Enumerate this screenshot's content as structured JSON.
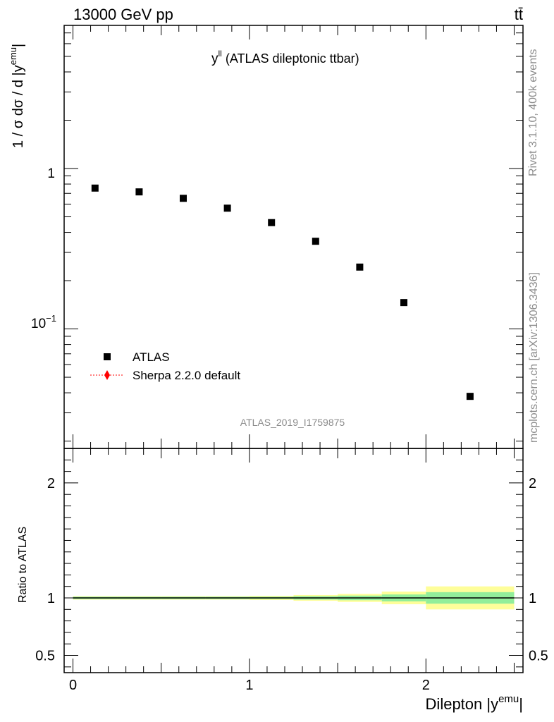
{
  "header": {
    "left": "13000 GeV pp",
    "right": "tt̄"
  },
  "side": {
    "rivet": "Rivet 3.1.10,  400k events",
    "mcplots": "mcplots.cern.ch [arXiv:1306.3436]"
  },
  "chart_data": [
    {
      "type": "scatter",
      "title_main": "y",
      "title_sup": "ll",
      "title_rest": " (ATLAS dileptonic ttbar)",
      "ylabel_main": "1 / σ  dσ / d |y",
      "ylabel_sup": "emu",
      "ylabel_end": "|",
      "yscale": "log",
      "ylim": [
        0.018,
        7.8
      ],
      "xlim": [
        -0.05,
        2.55
      ],
      "ytick_labels": {
        "one": "1",
        "tenth_base": "10",
        "tenth_exp": "−1"
      },
      "watermark": "ATLAS_2019_I1759875",
      "legend_position": "left",
      "series": [
        {
          "name": "ATLAS",
          "marker": "square",
          "color": "#000000",
          "x": [
            0.125,
            0.375,
            0.625,
            0.875,
            1.125,
            1.375,
            1.625,
            1.875,
            2.25
          ],
          "y": [
            0.755,
            0.715,
            0.652,
            0.566,
            0.46,
            0.352,
            0.243,
            0.146,
            0.038
          ]
        },
        {
          "name": "Sherpa 2.2.0 default",
          "marker": "diamond",
          "line": "dotted",
          "color": "#ff0000",
          "x": [],
          "y": []
        }
      ]
    },
    {
      "type": "line",
      "ylabel": "Ratio to ATLAS",
      "xlabel_main": "Dilepton |y",
      "xlabel_sup": "emu",
      "xlabel_end": "|",
      "ylim": [
        0.35,
        2.3
      ],
      "xlim": [
        -0.05,
        2.55
      ],
      "ytick_labels": [
        "0.5",
        "1",
        "2"
      ],
      "ytick_values": [
        0.5,
        1,
        2
      ],
      "xtick_labels": [
        "0",
        "1",
        "2"
      ],
      "xtick_values": [
        0,
        1,
        2
      ],
      "reference": 1,
      "bin_edges": [
        0,
        0.25,
        0.5,
        0.75,
        1.0,
        1.25,
        1.5,
        1.75,
        2.0,
        2.5
      ],
      "band_inner": [
        0.01,
        0.01,
        0.01,
        0.01,
        0.01,
        0.015,
        0.02,
        0.03,
        0.05
      ],
      "band_outer": [
        0.015,
        0.015,
        0.015,
        0.015,
        0.018,
        0.025,
        0.035,
        0.055,
        0.1
      ],
      "colors": {
        "inner": "#92ee9a",
        "outer": "#fefe9a",
        "reference": "#000000"
      }
    }
  ]
}
